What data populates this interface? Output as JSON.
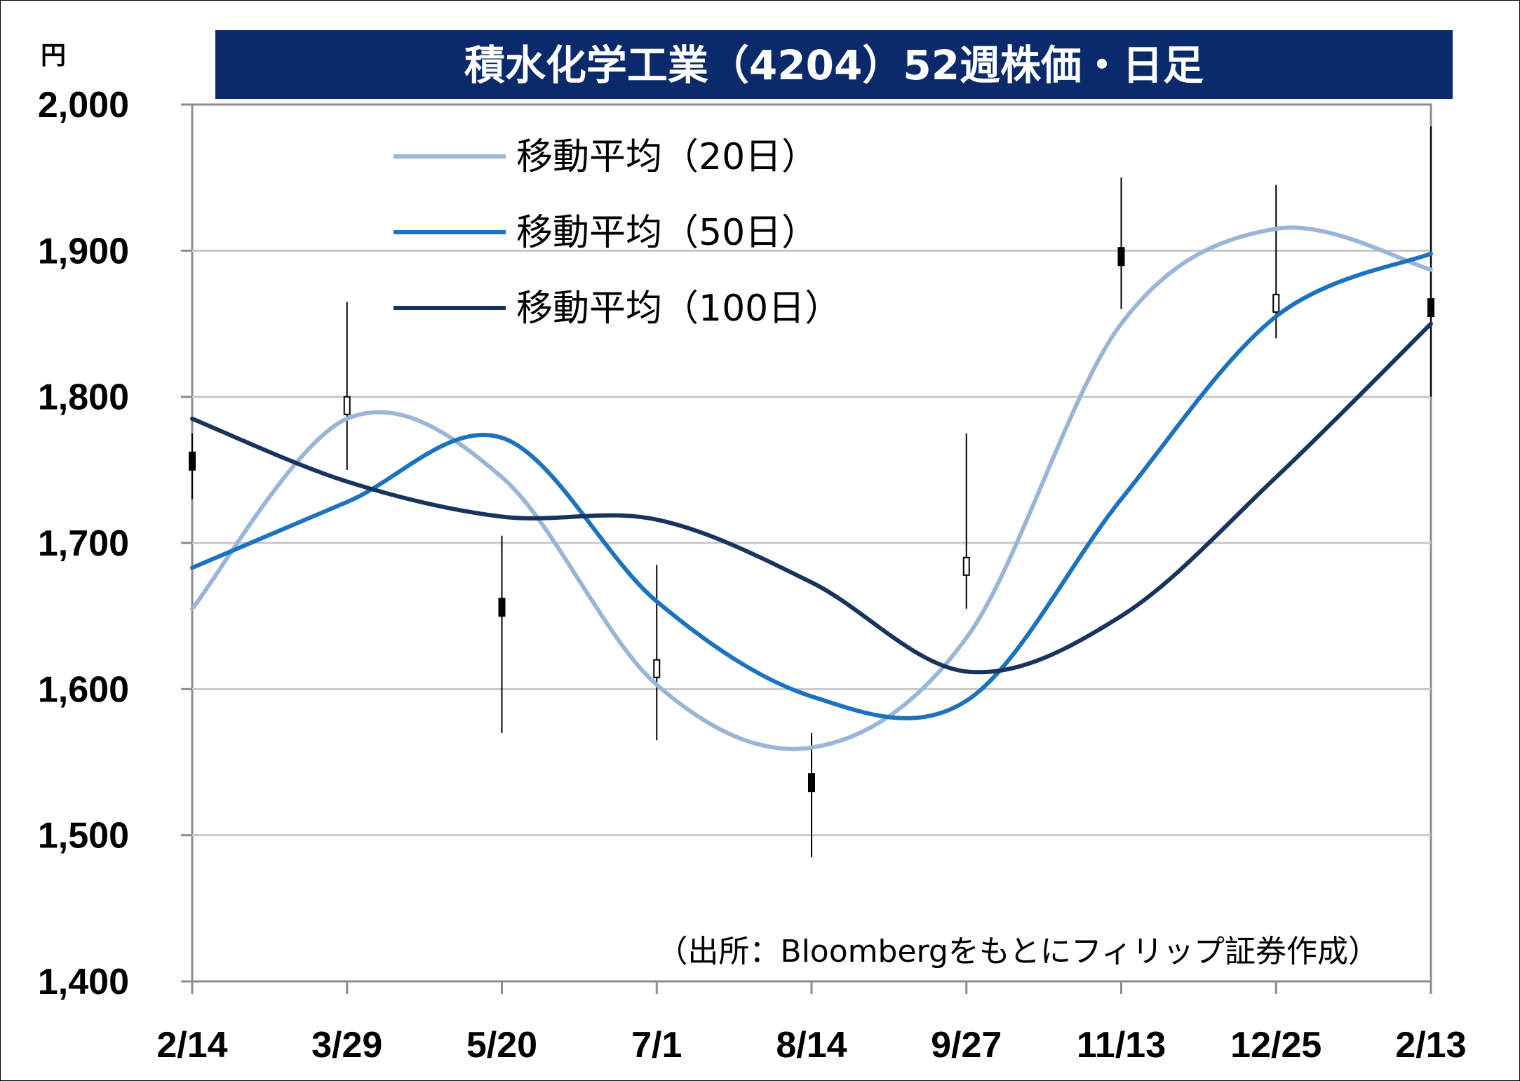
{
  "chart_data": {
    "type": "line",
    "subtype": "candlestick-with-moving-averages",
    "title": "積水化学工業（4204）52週株価・日足",
    "ylabel": "円",
    "ylim": [
      1400,
      2000
    ],
    "yticks": [
      "1,400",
      "1,500",
      "1,600",
      "1,700",
      "1,800",
      "1,900",
      "2,000"
    ],
    "ytick_values": [
      1400,
      1500,
      1600,
      1700,
      1800,
      1900,
      2000
    ],
    "xticks": [
      "2/14",
      "3/29",
      "5/20",
      "7/1",
      "8/14",
      "9/27",
      "11/13",
      "12/25",
      "2/13"
    ],
    "grid": true,
    "legend_position": "top-left",
    "source": "（出所：Bloombergをもとにフィリップ証券作成）",
    "colors": {
      "title_bg": "#0b2a6b",
      "ma20": "#9ab5d8",
      "ma50": "#1a72c0",
      "ma100": "#17335e",
      "grid": "#c8c8c8",
      "candle": "#000000"
    },
    "series": [
      {
        "name": "移動平均（20日）",
        "color": "#9ab5d8",
        "x": [
          "2/14",
          "3/29",
          "5/20",
          "7/1",
          "8/14",
          "9/27",
          "11/13",
          "12/25",
          "2/13"
        ],
        "values": [
          1655,
          1785,
          1745,
          1603,
          1560,
          1635,
          1850,
          1915,
          1887
        ]
      },
      {
        "name": "移動平均（50日）",
        "color": "#1a72c0",
        "x": [
          "2/14",
          "3/29",
          "5/20",
          "7/1",
          "8/14",
          "9/27",
          "11/13",
          "12/25",
          "2/13"
        ],
        "values": [
          1683,
          1728,
          1772,
          1660,
          1595,
          1592,
          1730,
          1855,
          1898
        ]
      },
      {
        "name": "移動平均（100日）",
        "color": "#17335e",
        "x": [
          "2/14",
          "3/29",
          "5/20",
          "7/1",
          "8/14",
          "9/27",
          "11/13",
          "12/25",
          "2/13"
        ],
        "values": [
          1785,
          1742,
          1718,
          1716,
          1673,
          1612,
          1650,
          1745,
          1850
        ]
      }
    ],
    "candles_summary": {
      "x": [
        "2/14",
        "3/29",
        "5/20",
        "7/1",
        "8/14",
        "9/27",
        "11/13",
        "12/25",
        "2/13"
      ],
      "close": [
        1750,
        1800,
        1650,
        1620,
        1530,
        1690,
        1890,
        1870,
        1855
      ],
      "high": [
        1775,
        1865,
        1705,
        1685,
        1570,
        1775,
        1950,
        1945,
        1985
      ],
      "low": [
        1730,
        1750,
        1570,
        1565,
        1485,
        1655,
        1860,
        1840,
        1800
      ]
    }
  }
}
